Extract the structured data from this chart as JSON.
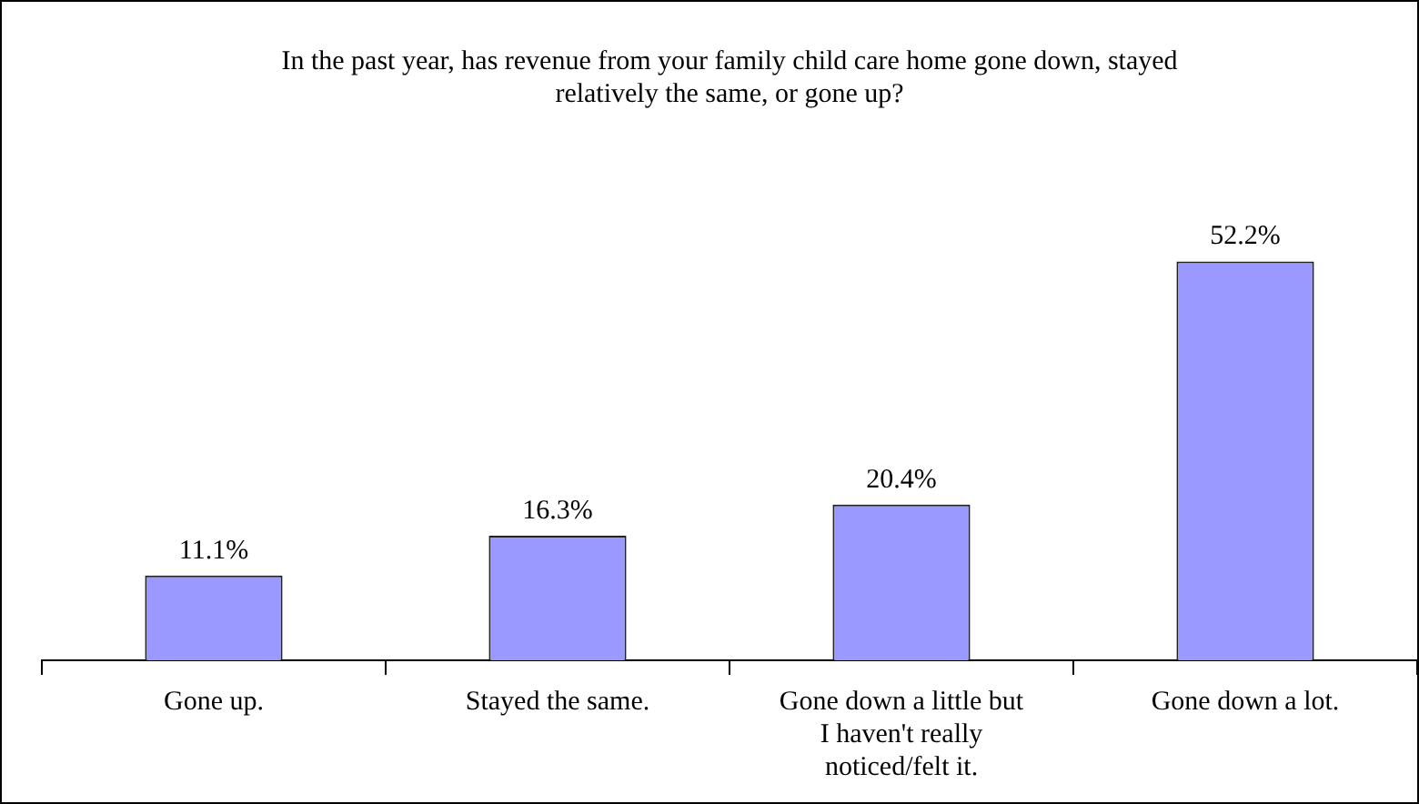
{
  "chart_data": {
    "type": "bar",
    "title": "In the past year, has revenue from your family child care home gone down, stayed relatively the same, or gone up?",
    "categories": [
      "Gone up.",
      "Stayed the same.",
      "Gone down a little but I haven't really noticed/felt it.",
      "Gone down a lot."
    ],
    "values": [
      11.1,
      16.3,
      20.4,
      52.2
    ],
    "value_labels": [
      "11.1%",
      "16.3%",
      "20.4%",
      "52.2%"
    ],
    "color": "#9999ff"
  }
}
